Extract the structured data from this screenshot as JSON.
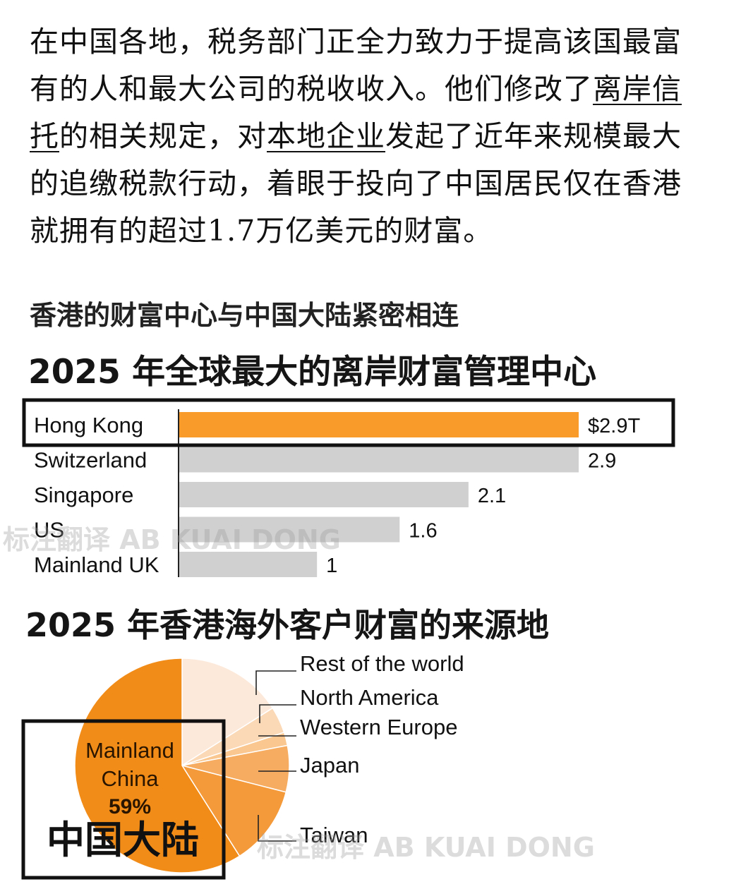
{
  "article": {
    "p1": "在中国各地，税务部门正全力致力于提高该国最富有的人和最大公司的税收收入。他们修改了",
    "link1": "离岸信托",
    "p2": "的相关规定，对",
    "link2": "本地企业",
    "p3": "发起了近年来规模最大的追缴税款行动，着眼于投向了中国居民仅在香港就拥有的超过1.7万亿美元的财富。"
  },
  "subtitle": "香港的财富中心与中国大陆紧密相连",
  "watermark": "标注翻译 AB KUAI DONG",
  "colors": {
    "highlight": "#F89B2A",
    "bar_gray": "#D0D0D0",
    "pie_main": "#F28C18"
  },
  "chart_data": [
    {
      "type": "bar",
      "title": "2025 年全球最大的离岸财富管理中心",
      "categories": [
        "Hong Kong",
        "Switzerland",
        "Singapore",
        "US",
        "Mainland UK"
      ],
      "values": [
        2.9,
        2.9,
        2.1,
        1.6,
        1.0
      ],
      "value_labels": [
        "$2.9T",
        "2.9",
        "2.1",
        "1.6",
        "1"
      ],
      "highlight": "Hong Kong"
    },
    {
      "type": "pie",
      "title": "2025 年香港海外客户财富的来源地",
      "categories": [
        "Mainland China",
        "Taiwan",
        "Japan",
        "Western Europe",
        "North America",
        "Rest of the world"
      ],
      "values": [
        59,
        12,
        7,
        2,
        4,
        16
      ],
      "center_label": {
        "line1": "Mainland",
        "line2": "China",
        "percent": "59%",
        "cn": "中国大陆"
      },
      "legend_labels": [
        "Rest of the world",
        "North America",
        "Western Europe",
        "Japan",
        "Taiwan"
      ]
    }
  ]
}
